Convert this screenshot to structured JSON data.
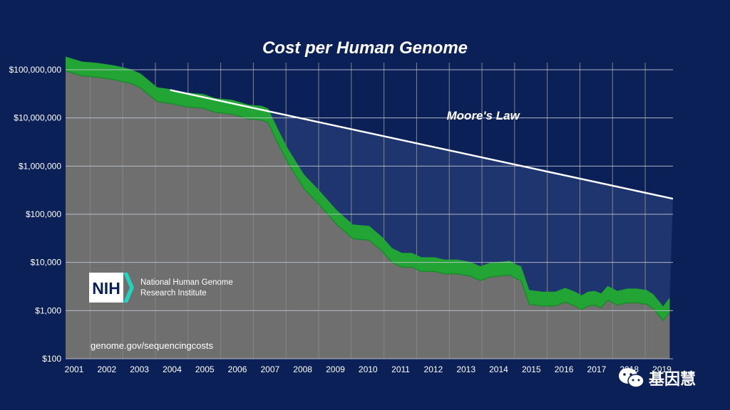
{
  "chart_data": {
    "type": "line",
    "title": "Cost per Human Genome",
    "xlabel": "",
    "ylabel": "",
    "y_scale": "log",
    "ylim": [
      100,
      100000000
    ],
    "xlim": [
      2001,
      2019.6
    ],
    "grid": true,
    "y_ticks": [
      "$100,000,000",
      "$10,000,000",
      "$1,000,000",
      "$100,000",
      "$10,000",
      "$1,000",
      "$100"
    ],
    "x_ticks": [
      "2001",
      "2002",
      "2003",
      "2004",
      "2005",
      "2006",
      "2007",
      "2008",
      "2009",
      "2010",
      "2011",
      "2012",
      "2013",
      "2014",
      "2015",
      "2016",
      "2017",
      "2018",
      "2019"
    ],
    "series": [
      {
        "name": "",
        "color": "#22a535",
        "points": [
          [
            2001.0,
            95000000
          ],
          [
            2001.5,
            75000000
          ],
          [
            2002.0,
            70000000
          ],
          [
            2002.5,
            62000000
          ],
          [
            2003.0,
            52000000
          ],
          [
            2003.3,
            42000000
          ],
          [
            2003.8,
            22000000
          ],
          [
            2004.2,
            20000000
          ],
          [
            2004.7,
            17000000
          ],
          [
            2005.2,
            16000000
          ],
          [
            2005.6,
            13000000
          ],
          [
            2006.1,
            12000000
          ],
          [
            2006.6,
            9500000
          ],
          [
            2007.0,
            9000000
          ],
          [
            2007.2,
            8000000
          ],
          [
            2007.5,
            3000000
          ],
          [
            2007.8,
            1200000
          ],
          [
            2008.3,
            340000
          ],
          [
            2008.8,
            150000
          ],
          [
            2009.3,
            62000
          ],
          [
            2009.8,
            31000
          ],
          [
            2010.3,
            29000
          ],
          [
            2010.7,
            17000
          ],
          [
            2011.0,
            10000
          ],
          [
            2011.3,
            8000
          ],
          [
            2011.6,
            8000
          ],
          [
            2011.9,
            6500
          ],
          [
            2012.3,
            6500
          ],
          [
            2012.6,
            5800
          ],
          [
            2013.0,
            5800
          ],
          [
            2013.4,
            5200
          ],
          [
            2013.7,
            4200
          ],
          [
            2014.0,
            5000
          ],
          [
            2014.3,
            5200
          ],
          [
            2014.6,
            5500
          ],
          [
            2014.8,
            4600
          ],
          [
            2014.95,
            4200
          ],
          [
            2015.2,
            1350
          ],
          [
            2015.6,
            1250
          ],
          [
            2016.0,
            1250
          ],
          [
            2016.3,
            1500
          ],
          [
            2016.6,
            1250
          ],
          [
            2016.8,
            1050
          ],
          [
            2017.0,
            1250
          ],
          [
            2017.2,
            1300
          ],
          [
            2017.4,
            1150
          ],
          [
            2017.6,
            1650
          ],
          [
            2017.9,
            1300
          ],
          [
            2018.2,
            1450
          ],
          [
            2018.5,
            1450
          ],
          [
            2018.8,
            1350
          ],
          [
            2019.0,
            1100
          ],
          [
            2019.3,
            620
          ],
          [
            2019.5,
            950
          ]
        ]
      },
      {
        "name": "Moore's Law",
        "color": "#ffffff",
        "points": [
          [
            2004.2,
            38000000
          ],
          [
            2019.6,
            210000
          ]
        ]
      }
    ],
    "annotations": [
      {
        "text": "Moore's Law",
        "x": 2013.0,
        "y": 1800000
      }
    ]
  },
  "branding": {
    "logo_text": "NIH",
    "org_line1": "National Human Genome",
    "org_line2": "Research Institute",
    "source_url": "genome.gov/sequencingcosts",
    "watermark_text": "基因慧",
    "watermark_icon": "wechat-icon"
  },
  "colors": {
    "background": "#0c2058",
    "plot_gray": "#6f6f6f",
    "gap_fill": "#1f3570",
    "band": "#22a535",
    "logo_accent": "#1fd5c0"
  }
}
